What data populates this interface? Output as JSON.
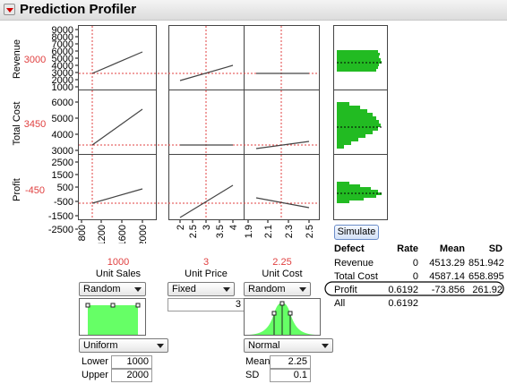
{
  "header": {
    "title": "Prediction Profiler"
  },
  "responses": [
    {
      "name": "Revenue",
      "current": "3000",
      "ticks": [
        "9000",
        "8000",
        "7000",
        "6000",
        "5000",
        "4000",
        "3000",
        "2000",
        "1000"
      ]
    },
    {
      "name": "Total Cost",
      "current": "3450",
      "ticks": [
        "6000",
        "5000",
        "4000",
        "3000"
      ]
    },
    {
      "name": "Profit",
      "current": "-450",
      "ticks": [
        "2500",
        "1500",
        "500",
        "-500",
        "-1500",
        "-2500"
      ]
    }
  ],
  "factors": [
    {
      "name": "Unit Sales",
      "current": "1000",
      "ticks": [
        "800",
        "1200",
        "1600",
        "2000"
      ],
      "mode": "Random",
      "distribution": "Uniform",
      "params": [
        {
          "label": "Lower",
          "value": "1000"
        },
        {
          "label": "Upper",
          "value": "2000"
        }
      ]
    },
    {
      "name": "Unit Price",
      "current": "3",
      "ticks": [
        "2",
        "2.5",
        "3",
        "3.5",
        "4"
      ],
      "mode": "Fixed",
      "fixed_value": "3"
    },
    {
      "name": "Unit Cost",
      "current": "2.25",
      "ticks": [
        "1.9",
        "2.1",
        "2.3",
        "2.5"
      ],
      "mode": "Random",
      "distribution": "Normal",
      "params": [
        {
          "label": "Mean",
          "value": "2.25"
        },
        {
          "label": "SD",
          "value": "0.1"
        }
      ]
    }
  ],
  "simulate_label": "Simulate",
  "defect_table": {
    "headers": [
      "Defect",
      "Rate",
      "Mean",
      "SD"
    ],
    "rows": [
      [
        "Revenue",
        "0",
        "4513.29",
        "851.942"
      ],
      [
        "Total Cost",
        "0",
        "4587.14",
        "658.895"
      ],
      [
        "Profit",
        "0.6192",
        "-73.856",
        "261.92"
      ],
      [
        "All",
        "0.6192",
        "",
        ""
      ]
    ]
  },
  "colors": {
    "current_value": "#e04040",
    "histogram": "#22bb22",
    "dist_fill": "#66ff66"
  }
}
